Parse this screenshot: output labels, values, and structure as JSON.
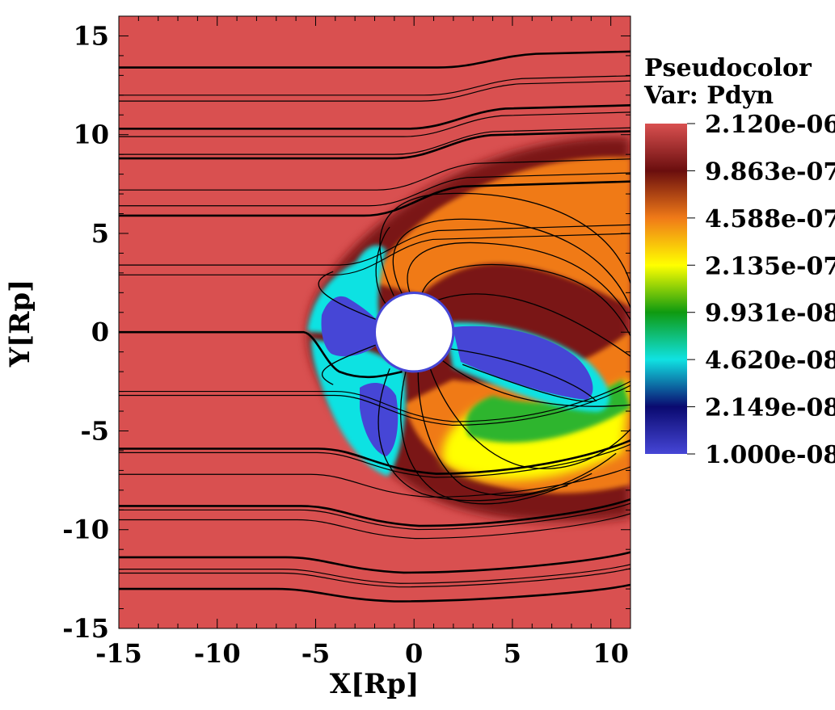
{
  "chart_data": {
    "type": "heatmap",
    "title": "",
    "xlabel": "X[Rp]",
    "ylabel": "Y[Rp]",
    "xlim": [
      -15,
      11
    ],
    "ylim": [
      -15,
      16
    ],
    "xticks": [
      -15,
      -10,
      -5,
      0,
      5,
      10
    ],
    "xtick_labels": [
      "-15",
      "-10",
      "-5",
      "0",
      "5",
      "10"
    ],
    "yticks": [
      -15,
      -10,
      -5,
      0,
      5,
      10,
      15
    ],
    "ytick_labels": [
      "-15",
      "-10",
      "-5",
      "0",
      "5",
      "10",
      "15"
    ],
    "variable": "Pdyn",
    "legend": {
      "title_line1": "Pseudocolor",
      "title_line2": "Var: Pdyn",
      "scale": "log",
      "labels": [
        "2.120e-06",
        "9.863e-07",
        "4.588e-07",
        "2.135e-07",
        "9.931e-08",
        "4.620e-08",
        "2.149e-08",
        "1.000e-08"
      ],
      "values": [
        2.12e-06,
        9.863e-07,
        4.588e-07,
        2.135e-07,
        9.931e-08,
        4.62e-08,
        2.149e-08,
        1e-08
      ],
      "colors": [
        "#d95050",
        "#6a0e0e",
        "#f07a18",
        "#ffff00",
        "#0f9a10",
        "#10e2e2",
        "#0a0a70",
        "#4646d6"
      ]
    },
    "planet": {
      "center": [
        0,
        0
      ],
      "radius": 2.0,
      "color": "#ffffff"
    },
    "regions": {
      "solar_wind": "#d95050",
      "magnetosheath_outer": "#f07a18",
      "magnetosheath_band": "#ffff00",
      "inner_lobes": "#10e2e2",
      "core": "#4646d6"
    },
    "field_line_y_values": [
      13.4,
      12.0,
      11.7,
      10.3,
      9.9,
      9.0,
      8.8,
      7.2,
      6.4,
      5.9,
      3.4,
      2.9,
      0.0,
      -3.0,
      -3.2,
      -5.9,
      -6.1,
      -7.2,
      -8.8,
      -9.0,
      -9.5,
      -11.4,
      -12.0,
      -12.2,
      -13.0
    ]
  }
}
